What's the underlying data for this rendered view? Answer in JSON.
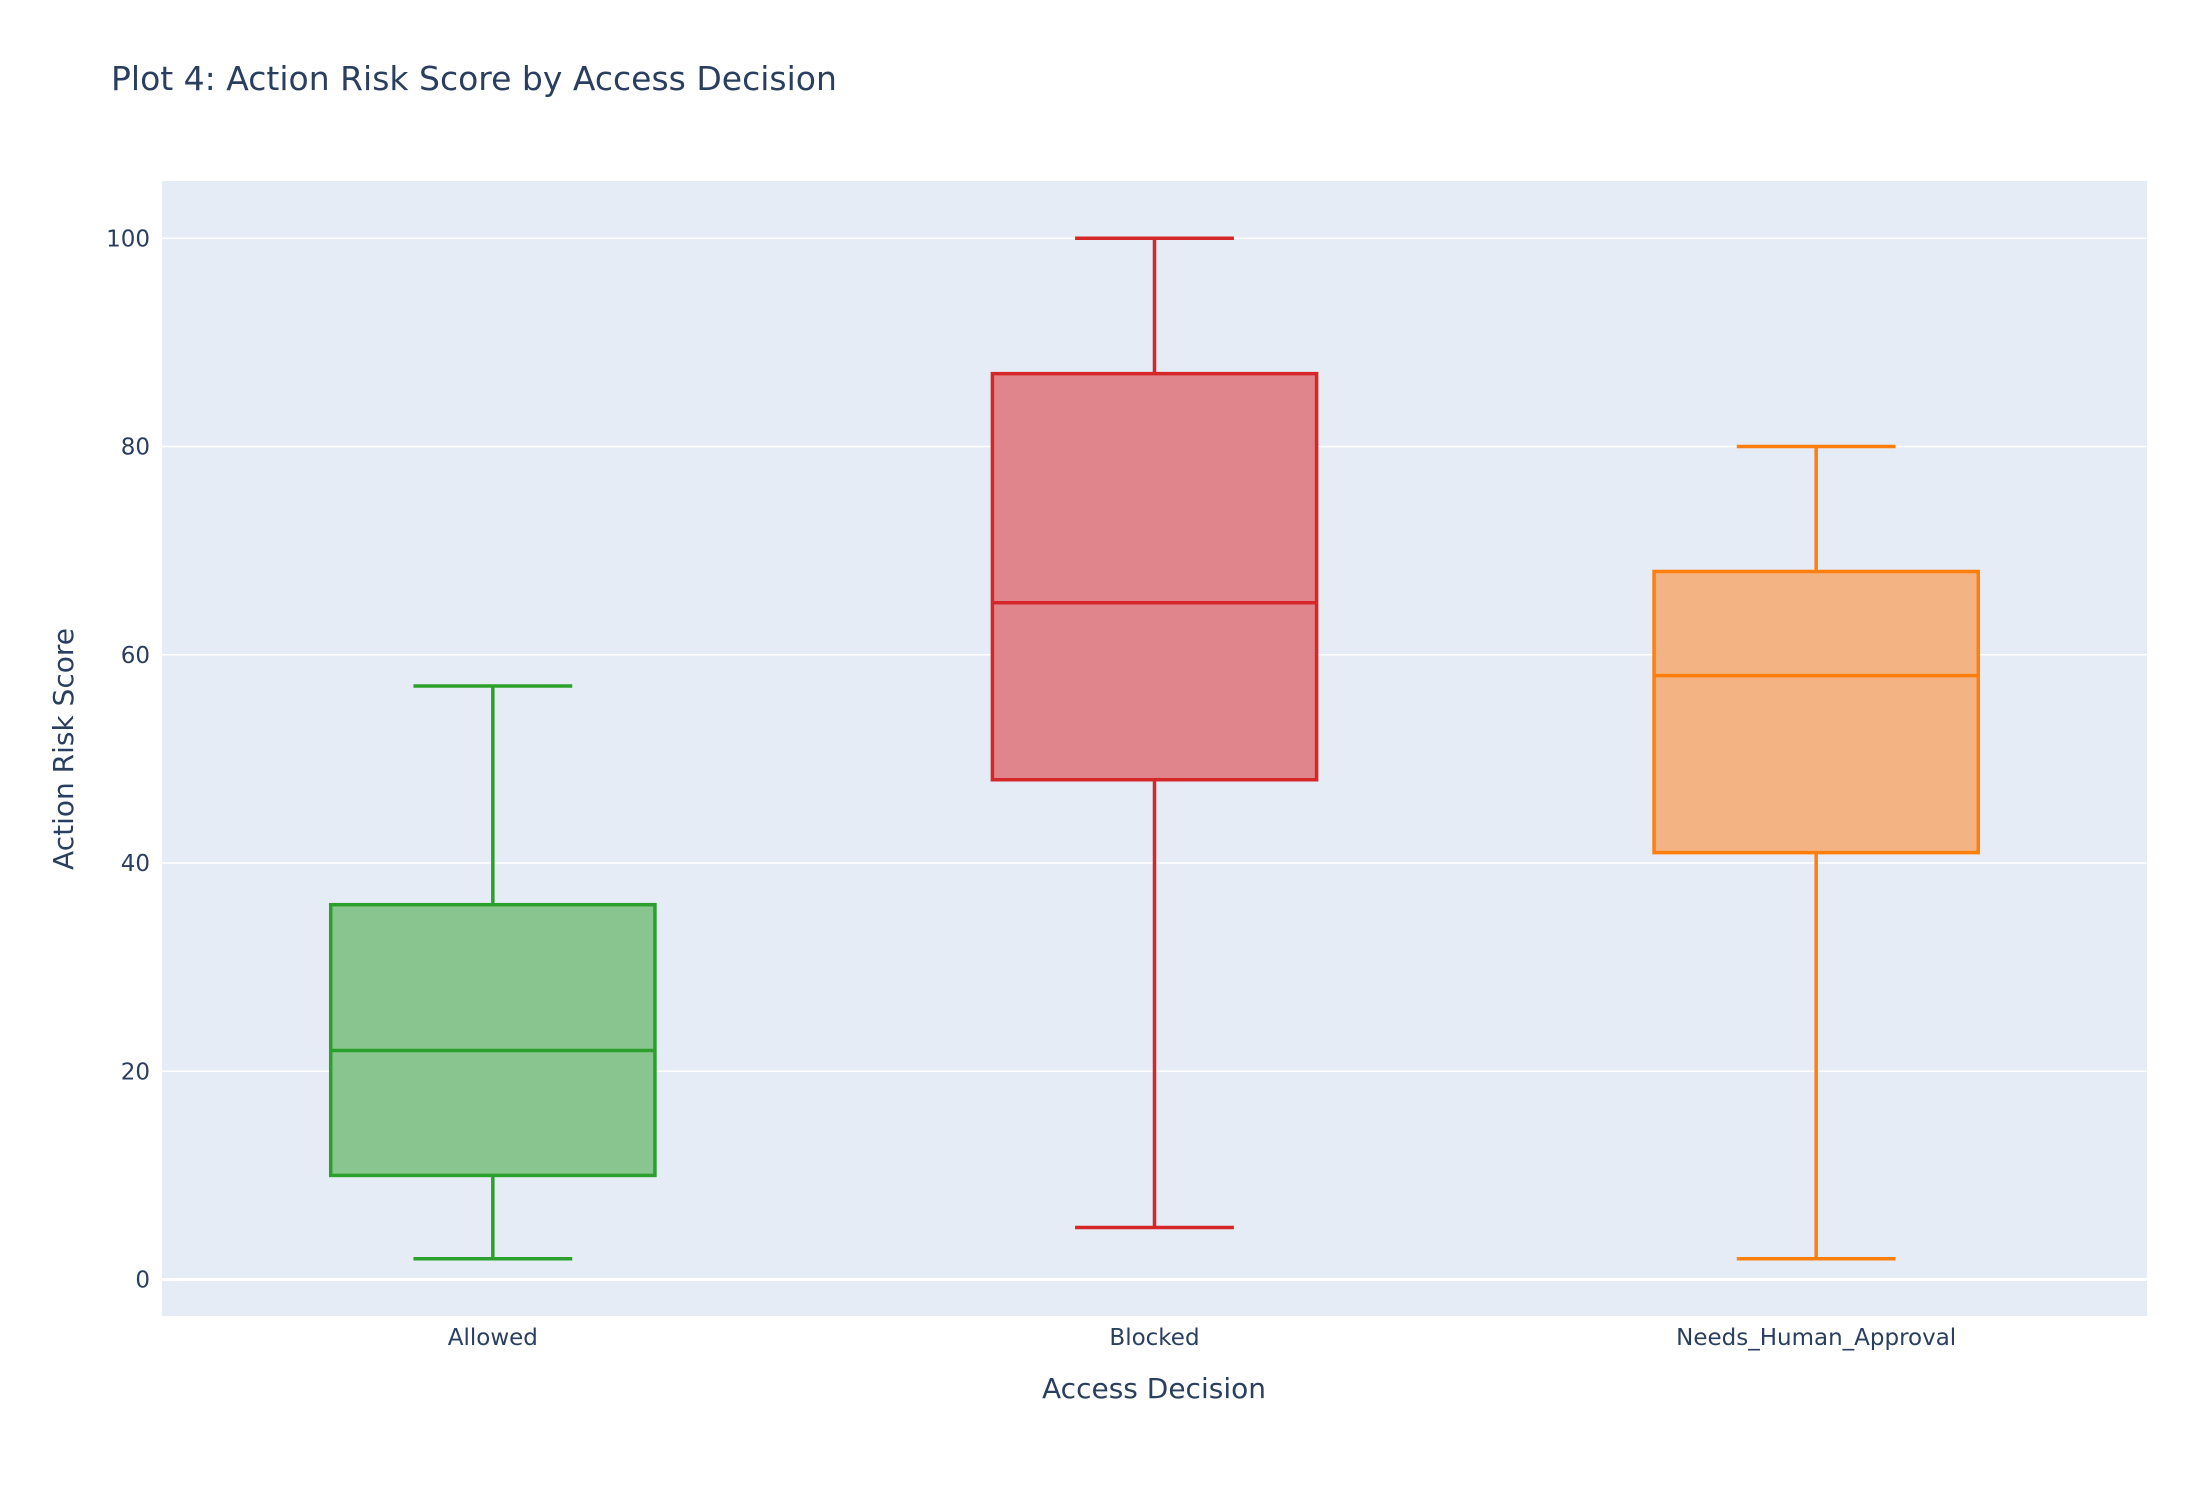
{
  "chart_data": {
    "type": "box",
    "title": "Plot 4: Action Risk Score by Access Decision",
    "xlabel": "Access Decision",
    "ylabel": "Action Risk Score",
    "ylim": [
      -3.5,
      105.5
    ],
    "yticks": [
      0,
      20,
      40,
      60,
      80,
      100
    ],
    "grid": true,
    "categories": [
      "Allowed",
      "Blocked",
      "Needs_Human_Approval"
    ],
    "series": [
      {
        "category": "Allowed",
        "min": 2,
        "q1": 10,
        "median": 22,
        "q3": 36,
        "max": 57,
        "color": "#2ca02c",
        "fill": "#89c58e"
      },
      {
        "category": "Blocked",
        "min": 5,
        "q1": 48,
        "median": 65,
        "q3": 87,
        "max": 100,
        "color": "#d62728",
        "fill": "#df858b"
      },
      {
        "category": "Needs_Human_Approval",
        "min": 2,
        "q1": 41,
        "median": 58,
        "q3": 68,
        "max": 80,
        "color": "#ff7f0e",
        "fill": "#f3b383"
      }
    ]
  }
}
